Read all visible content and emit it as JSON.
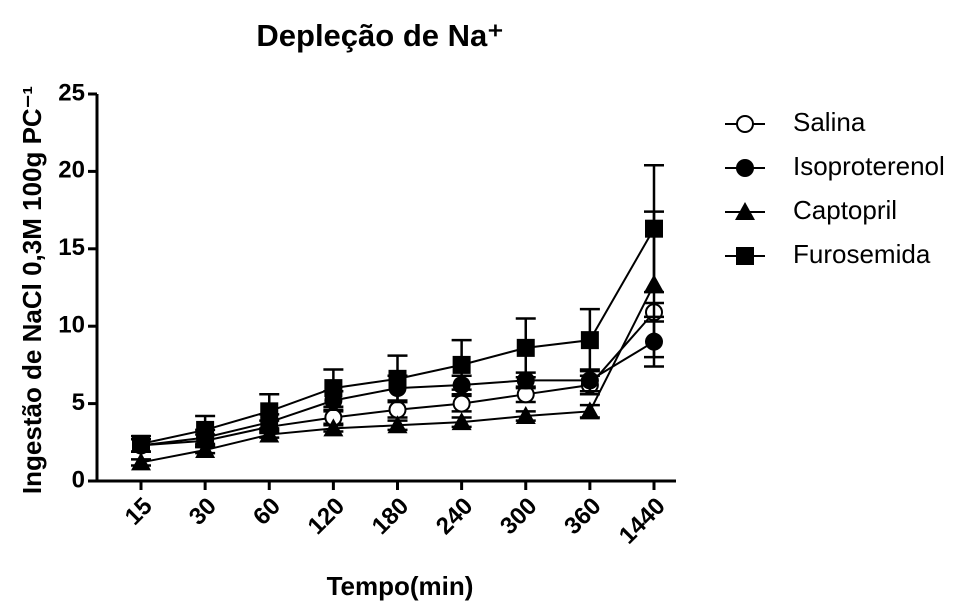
{
  "chart_data": {
    "type": "line",
    "title": "Depleção de Na⁺",
    "x_label": "Tempo(min)",
    "y_label": "Ingestão de NaCl 0,3M  100g PC⁻¹",
    "categories": [
      "15",
      "30",
      "60",
      "120",
      "180",
      "240",
      "300",
      "360",
      "1440"
    ],
    "ylim": [
      0,
      25
    ],
    "yticks": [
      0,
      5,
      10,
      15,
      20,
      25
    ],
    "legend": "right",
    "series": [
      {
        "name": "Salina",
        "color": "#000000",
        "marker": "circle-open",
        "values": [
          2.3,
          2.6,
          3.5,
          4.1,
          4.6,
          5.0,
          5.6,
          6.2,
          10.9
        ],
        "errors": [
          0.4,
          0.4,
          0.4,
          0.4,
          0.5,
          0.5,
          0.5,
          0.6,
          0.6
        ]
      },
      {
        "name": "Isoproterenol",
        "color": "#000000",
        "marker": "circle",
        "values": [
          2.3,
          2.8,
          3.8,
          5.2,
          6.0,
          6.2,
          6.5,
          6.5,
          9.0
        ],
        "errors": [
          0.4,
          0.5,
          0.5,
          0.6,
          0.8,
          0.6,
          0.5,
          0.7,
          1.6
        ]
      },
      {
        "name": "Captopril",
        "color": "#000000",
        "marker": "triangle",
        "values": [
          1.2,
          2.0,
          3.0,
          3.4,
          3.6,
          3.8,
          4.2,
          4.5,
          12.7
        ],
        "errors": [
          0.2,
          0.2,
          0.2,
          0.2,
          0.3,
          0.3,
          0.3,
          0.4,
          4.7
        ]
      },
      {
        "name": "Furosemida",
        "color": "#000000",
        "marker": "square",
        "values": [
          2.4,
          3.3,
          4.5,
          6.0,
          6.6,
          7.5,
          8.6,
          9.1,
          16.3
        ],
        "errors": [
          0.5,
          0.9,
          1.1,
          1.2,
          1.5,
          1.6,
          1.9,
          2.0,
          4.1
        ]
      }
    ]
  }
}
